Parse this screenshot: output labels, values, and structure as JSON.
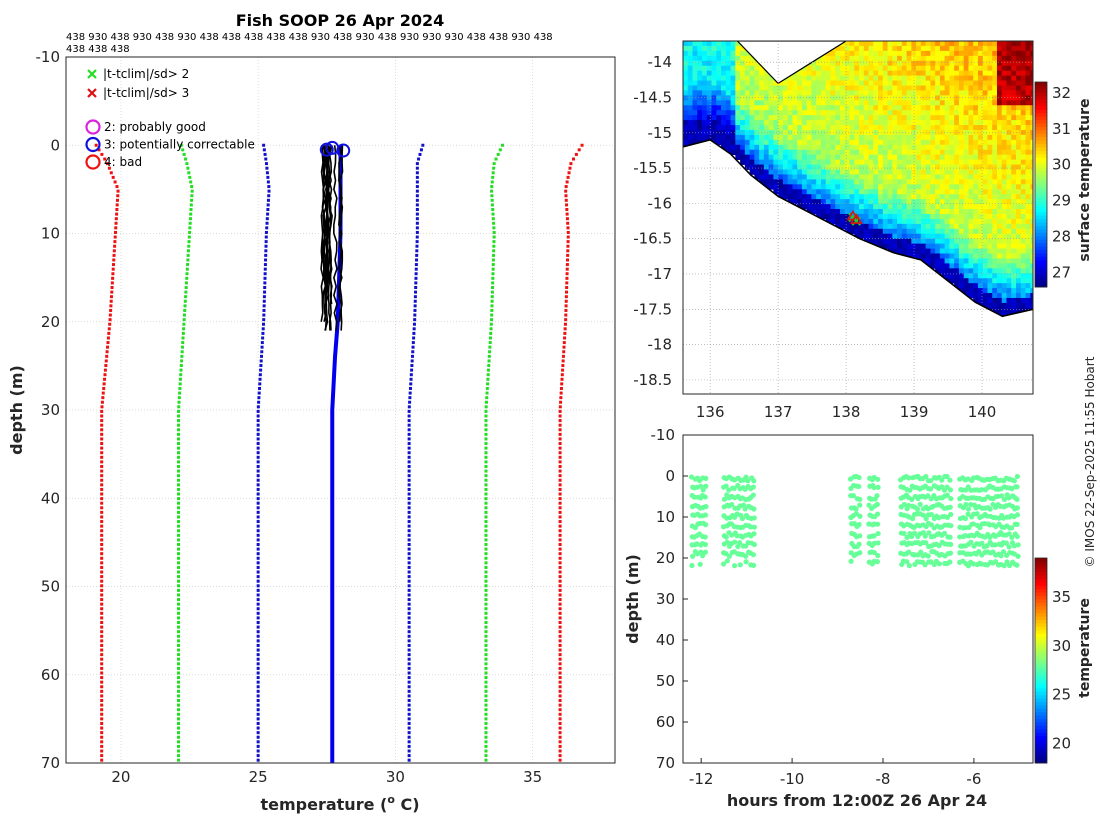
{
  "chart_data": [
    {
      "type": "line",
      "title": "Fish SOOP 26 Apr 2024",
      "xlabel": "temperature (°C)",
      "ylabel": "depth (m)",
      "xlim": [
        18,
        38
      ],
      "ylim": [
        -10,
        70
      ],
      "y_reversed": true,
      "grid": true,
      "xticks": [
        "20",
        "25",
        "30",
        "35"
      ],
      "yticks": [
        "-10",
        "0",
        "10",
        "20",
        "30",
        "40",
        "50",
        "60",
        "70"
      ],
      "header_codes_line1": "438 930 438 930 438 930 438 438 438 438 438 930 438 930 438 930 930 930 438 438 930 438",
      "header_codes_line2": "438 438 438",
      "legend_markers": [
        {
          "label": "|t-tclim|/sd> 2",
          "marker": "x",
          "color": "#22dd22"
        },
        {
          "label": "|t-tclim|/sd> 3",
          "marker": "x",
          "color": "#dd1111"
        }
      ],
      "legend_flags": [
        {
          "label": "2: probably good",
          "color": "#dd22dd"
        },
        {
          "label": "3: potentially correctable",
          "color": "#1111dd"
        },
        {
          "label": "4: bad",
          "color": "#ee1111"
        }
      ],
      "series": [
        {
          "name": "clim +3sd",
          "color": "#ee1111",
          "style": "dotted",
          "depth": [
            0,
            2,
            5,
            10,
            20,
            30,
            40,
            50,
            60,
            70
          ],
          "temperature": [
            36.8,
            36.4,
            36.2,
            36.3,
            36.2,
            36.0,
            36.0,
            36.0,
            36.0,
            36.0
          ]
        },
        {
          "name": "clim +2sd",
          "color": "#22dd22",
          "style": "dotted",
          "depth": [
            0,
            2,
            5,
            10,
            20,
            30,
            40,
            50,
            60,
            70
          ],
          "temperature": [
            33.9,
            33.6,
            33.5,
            33.6,
            33.5,
            33.3,
            33.3,
            33.3,
            33.3,
            33.3
          ]
        },
        {
          "name": "clim +1sd",
          "color": "#1111cc",
          "style": "dotted",
          "depth": [
            0,
            2,
            5,
            10,
            20,
            30,
            40,
            50,
            60,
            70
          ],
          "temperature": [
            31.0,
            30.8,
            30.8,
            30.8,
            30.7,
            30.5,
            30.5,
            30.5,
            30.5,
            30.5
          ]
        },
        {
          "name": "clim -1sd",
          "color": "#1111cc",
          "style": "dotted",
          "depth": [
            0,
            2,
            5,
            10,
            20,
            30,
            40,
            50,
            60,
            70
          ],
          "temperature": [
            25.2,
            25.3,
            25.4,
            25.3,
            25.2,
            25.0,
            25.0,
            25.0,
            25.0,
            25.0
          ]
        },
        {
          "name": "clim -2sd",
          "color": "#22dd22",
          "style": "dotted",
          "depth": [
            0,
            2,
            5,
            10,
            20,
            30,
            40,
            50,
            60,
            70
          ],
          "temperature": [
            22.2,
            22.4,
            22.6,
            22.5,
            22.3,
            22.1,
            22.1,
            22.1,
            22.1,
            22.1
          ]
        },
        {
          "name": "clim -3sd",
          "color": "#ee1111",
          "style": "dotted",
          "depth": [
            0,
            2,
            5,
            10,
            20,
            30,
            40,
            50,
            60,
            70
          ],
          "temperature": [
            19.1,
            19.5,
            19.9,
            19.8,
            19.6,
            19.3,
            19.3,
            19.3,
            19.3,
            19.3
          ]
        },
        {
          "name": "mean profile",
          "color": "#0000ee",
          "style": "solid",
          "depth": [
            0,
            10,
            20,
            24,
            30,
            40,
            50,
            60,
            70
          ],
          "temperature": [
            28.0,
            28.0,
            27.9,
            27.8,
            27.7,
            27.7,
            27.7,
            27.7,
            27.7
          ]
        },
        {
          "name": "observed profiles",
          "color": "#000000",
          "style": "solid",
          "depth_range": [
            0,
            22
          ],
          "temperature_range": [
            27.3,
            28.1
          ]
        }
      ],
      "flagged_points": [
        {
          "flag": 3,
          "temperature": 27.5,
          "depth": 0.5
        },
        {
          "flag": 3,
          "temperature": 27.7,
          "depth": 0.3
        },
        {
          "flag": 3,
          "temperature": 28.1,
          "depth": 0.6
        }
      ]
    },
    {
      "type": "heatmap",
      "title": "",
      "xlabel": "",
      "ylabel": "",
      "xlim": [
        135.6,
        140.75
      ],
      "ylim": [
        -18.7,
        -13.7
      ],
      "xticks": [
        "136",
        "137",
        "138",
        "139",
        "140"
      ],
      "yticks": [
        "-14",
        "-14.5",
        "-15",
        "-15.5",
        "-16",
        "-16.5",
        "-17",
        "-17.5",
        "-18",
        "-18.5"
      ],
      "colorbar": {
        "label": "surface temperature",
        "range": [
          26.6,
          32.3
        ],
        "ticks": [
          "27",
          "28",
          "29",
          "30",
          "31",
          "32"
        ]
      },
      "coastline": [
        [
          135.6,
          -15.2
        ],
        [
          136.0,
          -15.1
        ],
        [
          136.3,
          -15.3
        ],
        [
          136.6,
          -15.6
        ],
        [
          137.0,
          -15.9
        ],
        [
          137.4,
          -16.1
        ],
        [
          137.8,
          -16.3
        ],
        [
          138.2,
          -16.5
        ],
        [
          138.7,
          -16.7
        ],
        [
          139.1,
          -16.8
        ],
        [
          139.5,
          -17.1
        ],
        [
          139.9,
          -17.4
        ],
        [
          140.3,
          -17.6
        ],
        [
          140.75,
          -17.5
        ]
      ],
      "track": [
        {
          "lon": 138.1,
          "lat": -16.2
        },
        {
          "lon": 138.15,
          "lat": -16.25
        }
      ]
    },
    {
      "type": "scatter",
      "title": "",
      "xlabel": "hours from 12:00Z 26 Apr 24",
      "ylabel": "depth (m)",
      "xlim": [
        -12.4,
        -4.7
      ],
      "ylim": [
        -10,
        70
      ],
      "y_reversed": true,
      "xticks": [
        "-12",
        "-10",
        "-8",
        "-6"
      ],
      "yticks": [
        "-10",
        "0",
        "10",
        "20",
        "30",
        "40",
        "50",
        "60",
        "70"
      ],
      "colorbar": {
        "label": "temperature",
        "range": [
          18,
          39
        ],
        "ticks": [
          "20",
          "25",
          "30",
          "35"
        ]
      },
      "point_color_value": 28,
      "casts": [
        {
          "start_hour": -12.2,
          "end_hour": -11.9,
          "max_depth": 21
        },
        {
          "start_hour": -11.5,
          "end_hour": -10.8,
          "max_depth": 22
        },
        {
          "start_hour": -8.7,
          "end_hour": -8.5,
          "max_depth": 22
        },
        {
          "start_hour": -8.3,
          "end_hour": -8.1,
          "max_depth": 23
        },
        {
          "start_hour": -7.6,
          "end_hour": -6.5,
          "max_depth": 23
        },
        {
          "start_hour": -6.3,
          "end_hour": -5.0,
          "max_depth": 23
        }
      ]
    }
  ],
  "credit": "© IMOS 22-Sep-2025 11:55 Hobart"
}
